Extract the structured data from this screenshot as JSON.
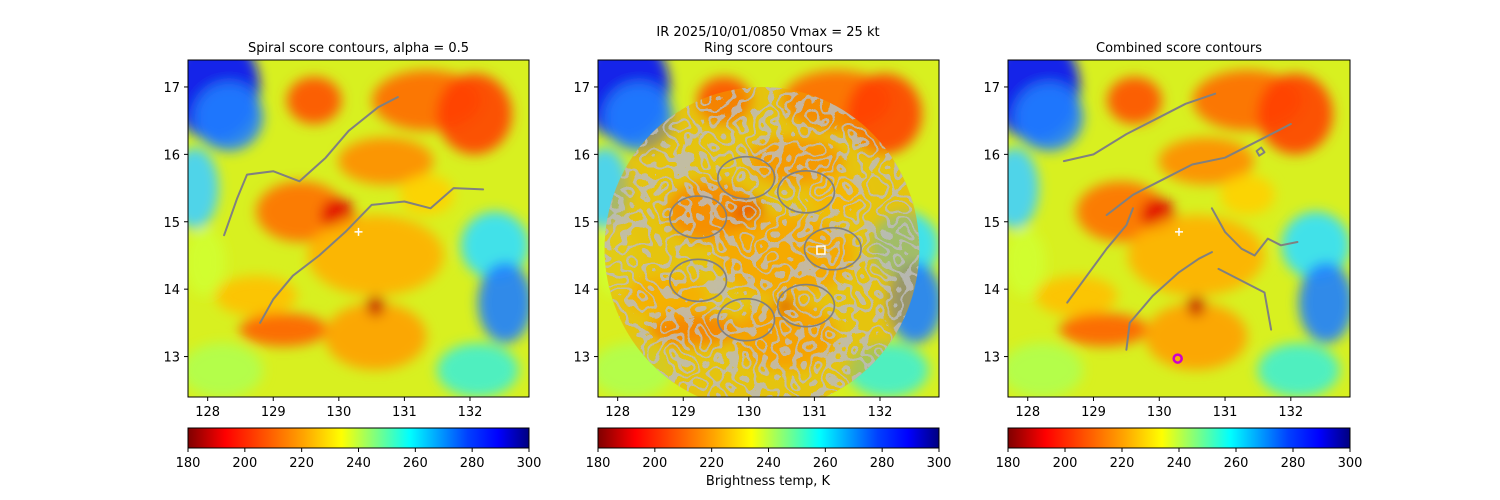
{
  "figure": {
    "suptitle_line1": "IR  2025/10/01/0850    Vmax = 25 kt",
    "colorbar_label": "Brightness temp, K"
  },
  "chart_data": [
    {
      "type": "heatmap",
      "title": "Spiral score contours, alpha =  0.5",
      "x_ticks": [
        "128",
        "129",
        "130",
        "131",
        "132"
      ],
      "y_ticks": [
        "17",
        "16",
        "15",
        "14",
        "13"
      ],
      "xlim": [
        127.7,
        132.9
      ],
      "ylim": [
        12.4,
        17.4
      ],
      "colorbar": {
        "label": "",
        "range": [
          180,
          300
        ],
        "ticks": [
          "180",
          "200",
          "220",
          "240",
          "260",
          "280",
          "300"
        ],
        "colormap": "jet_r"
      },
      "contours": [
        {
          "name": "spiral-arm-upper",
          "points": [
            [
              128.25,
              14.8
            ],
            [
              128.45,
              15.35
            ],
            [
              128.6,
              15.7
            ],
            [
              129.0,
              15.75
            ],
            [
              129.4,
              15.6
            ],
            [
              129.8,
              15.95
            ],
            [
              130.15,
              16.35
            ],
            [
              130.6,
              16.7
            ],
            [
              130.9,
              16.85
            ]
          ]
        },
        {
          "name": "spiral-arm-lower",
          "points": [
            [
              128.8,
              13.5
            ],
            [
              129.0,
              13.85
            ],
            [
              129.3,
              14.2
            ],
            [
              129.7,
              14.5
            ],
            [
              130.1,
              14.85
            ],
            [
              130.5,
              15.25
            ],
            [
              131.0,
              15.3
            ],
            [
              131.4,
              15.2
            ],
            [
              131.75,
              15.5
            ],
            [
              132.2,
              15.48
            ]
          ]
        }
      ],
      "markers": [
        {
          "type": "plus",
          "lon": 130.3,
          "lat": 14.85,
          "color": "#ffffff"
        }
      ]
    },
    {
      "type": "heatmap",
      "title": "Ring score contours",
      "x_ticks": [
        "128",
        "129",
        "130",
        "131",
        "132"
      ],
      "y_ticks": [
        "17",
        "16",
        "15",
        "14",
        "13"
      ],
      "xlim": [
        127.7,
        132.9
      ],
      "ylim": [
        12.4,
        17.4
      ],
      "colorbar": {
        "label": "Brightness temp, K",
        "range": [
          180,
          300
        ],
        "ticks": [
          "180",
          "200",
          "220",
          "240",
          "260",
          "280",
          "300"
        ],
        "colormap": "jet_r"
      },
      "contour_region": {
        "center_lon": 130.2,
        "center_lat": 14.6,
        "radius_deg": 2.4
      },
      "markers": [
        {
          "type": "square",
          "lon": 131.1,
          "lat": 14.58,
          "color": "#ffffff"
        }
      ]
    },
    {
      "type": "heatmap",
      "title": "Combined score contours",
      "x_ticks": [
        "128",
        "129",
        "130",
        "131",
        "132"
      ],
      "y_ticks": [
        "17",
        "16",
        "15",
        "14",
        "13"
      ],
      "xlim": [
        127.7,
        132.9
      ],
      "ylim": [
        12.4,
        17.4
      ],
      "colorbar": {
        "label": "",
        "range": [
          180,
          300
        ],
        "ticks": [
          "180",
          "200",
          "220",
          "240",
          "260",
          "280",
          "300"
        ],
        "colormap": "jet_r"
      },
      "contours": [
        {
          "name": "upper-band",
          "points": [
            [
              128.55,
              15.9
            ],
            [
              129.0,
              16.0
            ],
            [
              129.5,
              16.3
            ],
            [
              130.0,
              16.55
            ],
            [
              130.4,
              16.75
            ],
            [
              130.85,
              16.9
            ]
          ]
        },
        {
          "name": "middle-band",
          "points": [
            [
              129.2,
              15.1
            ],
            [
              129.6,
              15.4
            ],
            [
              130.0,
              15.6
            ],
            [
              130.5,
              15.85
            ],
            [
              131.0,
              15.95
            ],
            [
              131.4,
              16.15
            ],
            [
              131.8,
              16.35
            ],
            [
              132.0,
              16.45
            ]
          ]
        },
        {
          "name": "left-branch",
          "points": [
            [
              128.6,
              13.8
            ],
            [
              128.9,
              14.2
            ],
            [
              129.2,
              14.6
            ],
            [
              129.5,
              14.95
            ],
            [
              129.6,
              15.2
            ]
          ]
        },
        {
          "name": "center-branch",
          "points": [
            [
              129.5,
              13.1
            ],
            [
              129.55,
              13.5
            ],
            [
              129.9,
              13.9
            ],
            [
              130.3,
              14.25
            ],
            [
              130.6,
              14.45
            ],
            [
              130.8,
              14.55
            ]
          ]
        },
        {
          "name": "right-branch",
          "points": [
            [
              130.8,
              15.2
            ],
            [
              131.0,
              14.85
            ],
            [
              131.25,
              14.6
            ],
            [
              131.45,
              14.5
            ],
            [
              131.65,
              14.75
            ],
            [
              131.85,
              14.65
            ],
            [
              132.1,
              14.7
            ]
          ]
        },
        {
          "name": "lower-right-branch",
          "points": [
            [
              130.9,
              14.3
            ],
            [
              131.3,
              14.1
            ],
            [
              131.6,
              13.95
            ],
            [
              131.7,
              13.4
            ]
          ]
        },
        {
          "name": "small-loop",
          "points": [
            [
              131.48,
              16.05
            ],
            [
              131.55,
              16.1
            ],
            [
              131.6,
              16.03
            ],
            [
              131.52,
              15.98
            ],
            [
              131.48,
              16.05
            ]
          ]
        }
      ],
      "markers": [
        {
          "type": "plus",
          "lon": 130.3,
          "lat": 14.85,
          "color": "#ffffff"
        },
        {
          "type": "circle",
          "lon": 130.28,
          "lat": 12.97,
          "color": "#cc00cc"
        }
      ]
    }
  ]
}
